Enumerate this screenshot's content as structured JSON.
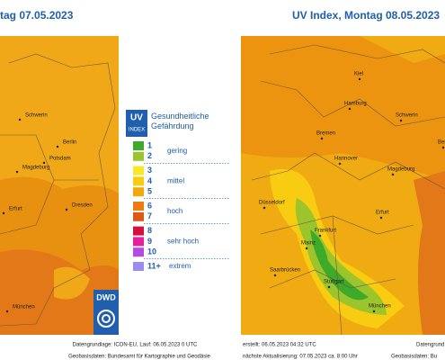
{
  "left_map": {
    "title": "tag 07.05.2023",
    "cities": [
      "Schwerin",
      "Berlin",
      "Potsdam",
      "Magdeburg",
      "Erfurt",
      "Dresden",
      "München"
    ],
    "footer": [
      "Datengrundlage: ICON-EU, Lauf: 06.05.2023 0 UTC",
      "Geobasisdaten: Bundesamt für Kartographie und Geodäsie"
    ]
  },
  "right_map": {
    "title": "UV Index, Montag 08.05.2023",
    "cities": [
      "Kiel",
      "Hamburg",
      "Schwerin",
      "Bremen",
      "Berlin",
      "Hannover",
      "Magdeburg",
      "Düsseldorf",
      "Erfurt",
      "Frankfurt",
      "Mainz",
      "Saarbrücken",
      "Stuttgart",
      "München"
    ],
    "footer": [
      "erstellt: 06.05.2023 04:32 UTC",
      "nächste Aktualisierung: 07.05.2023 ca. 8:00 Uhr",
      "Datengrund",
      "Geobasisdaten: Bu"
    ]
  },
  "legend": {
    "badge": "UV",
    "badge_sub": "INDEX",
    "heading": "Gesundheitliche Gefährdung",
    "levels": [
      {
        "label": "1",
        "color": "#3daa2a"
      },
      {
        "label": "2",
        "color": "#9cc42c"
      },
      {
        "label": "3",
        "color": "#f8e826"
      },
      {
        "label": "4",
        "color": "#f8cc10"
      },
      {
        "label": "5",
        "color": "#f0aa10"
      },
      {
        "label": "6",
        "color": "#ec7c10"
      },
      {
        "label": "7",
        "color": "#dc5818"
      },
      {
        "label": "8",
        "color": "#d4103c"
      },
      {
        "label": "9",
        "color": "#e6209a"
      },
      {
        "label": "10",
        "color": "#b44ce4"
      },
      {
        "label": "11+",
        "color": "#9a8cf0"
      }
    ],
    "groups": [
      "gering",
      "mittel",
      "hoch",
      "sehr hoch",
      "extrem"
    ]
  },
  "logo": "DWD"
}
